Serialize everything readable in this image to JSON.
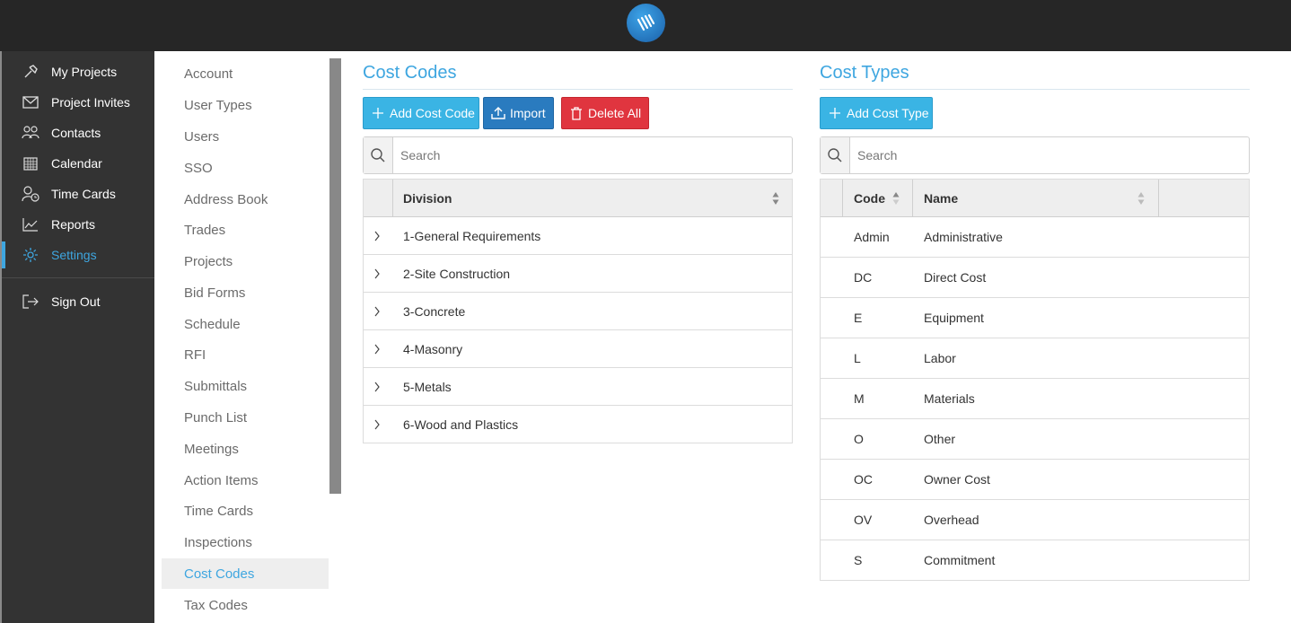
{
  "colors": {
    "accent": "#3ea6e0",
    "topbar": "#262626",
    "sidebar": "#333333",
    "info": "#3ab4e4",
    "primary": "#2a7bbf",
    "danger": "#e0353f"
  },
  "sidebar": {
    "items": [
      {
        "label": "My Projects",
        "icon": "hammer-icon"
      },
      {
        "label": "Project Invites",
        "icon": "envelope-icon"
      },
      {
        "label": "Contacts",
        "icon": "contacts-icon"
      },
      {
        "label": "Calendar",
        "icon": "calendar-icon"
      },
      {
        "label": "Time Cards",
        "icon": "user-clock-icon"
      },
      {
        "label": "Reports",
        "icon": "line-chart-icon"
      },
      {
        "label": "Settings",
        "icon": "gear-icon",
        "active": true
      }
    ],
    "sign_out": {
      "label": "Sign Out",
      "icon": "sign-out-icon"
    }
  },
  "settings_nav": {
    "items": [
      "Account",
      "User Types",
      "Users",
      "SSO",
      "Address Book",
      "Trades",
      "Projects",
      "Bid Forms",
      "Schedule",
      "RFI",
      "Submittals",
      "Punch List",
      "Meetings",
      "Action Items",
      "Time Cards",
      "Inspections",
      "Cost Codes",
      "Tax Codes"
    ],
    "active": "Cost Codes"
  },
  "cost_codes": {
    "title": "Cost Codes",
    "buttons": {
      "add": "Add Cost Code",
      "import": "Import",
      "delete_all": "Delete All"
    },
    "search_placeholder": "Search",
    "columns": {
      "division": "Division"
    },
    "rows": [
      "1-General Requirements",
      "2-Site Construction",
      "3-Concrete",
      "4-Masonry",
      "5-Metals",
      "6-Wood and Plastics"
    ]
  },
  "cost_types": {
    "title": "Cost Types",
    "buttons": {
      "add": "Add Cost Type"
    },
    "search_placeholder": "Search",
    "columns": {
      "code": "Code",
      "name": "Name"
    },
    "rows": [
      {
        "code": "Admin",
        "name": "Administrative"
      },
      {
        "code": "DC",
        "name": "Direct Cost"
      },
      {
        "code": "E",
        "name": "Equipment"
      },
      {
        "code": "L",
        "name": "Labor"
      },
      {
        "code": "M",
        "name": "Materials"
      },
      {
        "code": "O",
        "name": "Other"
      },
      {
        "code": "OC",
        "name": "Owner Cost"
      },
      {
        "code": "OV",
        "name": "Overhead"
      },
      {
        "code": "S",
        "name": "Commitment"
      }
    ]
  }
}
